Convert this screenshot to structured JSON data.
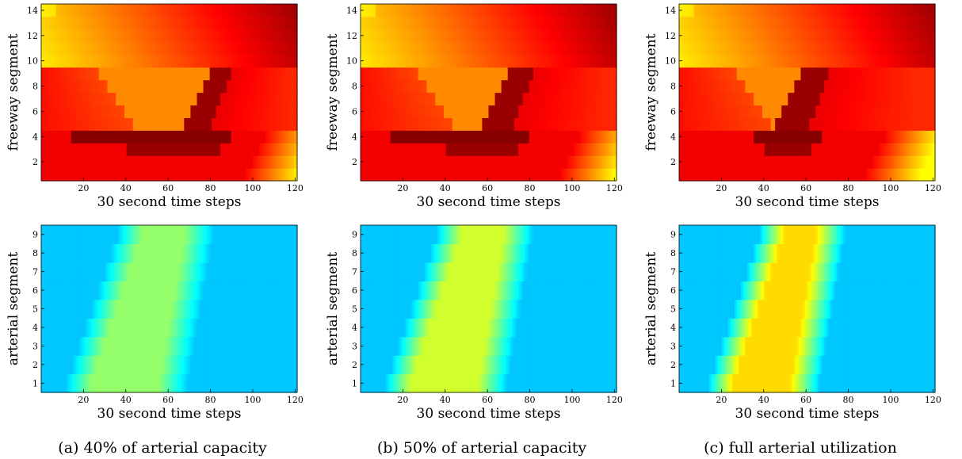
{
  "figure": {
    "captions": [
      "(a) 40% of arterial capacity",
      "(b) 50% of arterial capacity",
      "(c) full arterial utilization"
    ]
  },
  "chart_data": [
    {
      "type": "heatmap",
      "panel": "a",
      "row": "freeway",
      "xlabel": "30 second time steps",
      "ylabel": "freeway segment",
      "xlim": [
        0,
        121
      ],
      "ylim": [
        0.5,
        14.5
      ],
      "xticks": [
        20,
        40,
        60,
        80,
        100,
        120
      ],
      "yticks": [
        2,
        4,
        6,
        8,
        10,
        12,
        14
      ],
      "colormap": "hot",
      "grid": false,
      "nx": 120,
      "ny": 14,
      "description_of_values": "14 segment rows x 120 time-step columns; values 0 (dark red) to 1 (yellow)",
      "model": {
        "kind": "freeway",
        "q_start": 24,
        "q_end": 80,
        "recover_end": 118
      }
    },
    {
      "type": "heatmap",
      "panel": "b",
      "row": "freeway",
      "xlabel": "30 second time steps",
      "ylabel": "freeway segment",
      "xlim": [
        0,
        121
      ],
      "ylim": [
        0.5,
        14.5
      ],
      "xticks": [
        20,
        40,
        60,
        80,
        100,
        120
      ],
      "yticks": [
        2,
        4,
        6,
        8,
        10,
        12,
        14
      ],
      "colormap": "hot",
      "grid": false,
      "nx": 120,
      "ny": 14,
      "model": {
        "kind": "freeway",
        "q_start": 24,
        "q_end": 70,
        "recover_end": 116
      }
    },
    {
      "type": "heatmap",
      "panel": "c",
      "row": "freeway",
      "xlabel": "30 second time steps",
      "ylabel": "freeway segment",
      "xlim": [
        0,
        121
      ],
      "ylim": [
        0.5,
        14.5
      ],
      "xticks": [
        20,
        40,
        60,
        80,
        100,
        120
      ],
      "yticks": [
        2,
        4,
        6,
        8,
        10,
        12,
        14
      ],
      "colormap": "hot",
      "grid": false,
      "nx": 120,
      "ny": 14,
      "model": {
        "kind": "freeway",
        "q_start": 45,
        "q_end": 58,
        "recover_end": 110
      }
    },
    {
      "type": "heatmap",
      "panel": "a",
      "row": "arterial",
      "xlabel": "30 second time steps",
      "ylabel": "arterial segment",
      "xlim": [
        0,
        121
      ],
      "ylim": [
        0.5,
        9.5
      ],
      "xticks": [
        20,
        40,
        60,
        80,
        100,
        120
      ],
      "yticks": [
        1,
        2,
        3,
        4,
        5,
        6,
        7,
        8,
        9
      ],
      "colormap": "jet",
      "grid": false,
      "nx": 120,
      "ny": 9,
      "model": {
        "kind": "arterial",
        "start": 12,
        "width": 45,
        "shift": 3,
        "peak": 0.52
      }
    },
    {
      "type": "heatmap",
      "panel": "b",
      "row": "arterial",
      "xlabel": "30 second time steps",
      "ylabel": "arterial segment",
      "xlim": [
        0,
        121
      ],
      "ylim": [
        0.5,
        9.5
      ],
      "xticks": [
        20,
        40,
        60,
        80,
        100,
        120
      ],
      "yticks": [
        1,
        2,
        3,
        4,
        5,
        6,
        7,
        8,
        9
      ],
      "colormap": "jet",
      "grid": false,
      "nx": 120,
      "ny": 9,
      "model": {
        "kind": "arterial",
        "start": 12,
        "width": 45,
        "shift": 3,
        "peak": 0.58
      }
    },
    {
      "type": "heatmap",
      "panel": "c",
      "row": "arterial",
      "xlabel": "30 second time steps",
      "ylabel": "arterial segment",
      "xlim": [
        0,
        121
      ],
      "ylim": [
        0.5,
        9.5
      ],
      "xticks": [
        20,
        40,
        60,
        80,
        100,
        120
      ],
      "yticks": [
        1,
        2,
        3,
        4,
        5,
        6,
        7,
        8,
        9
      ],
      "colormap": "jet",
      "grid": false,
      "nx": 120,
      "ny": 9,
      "model": {
        "kind": "arterial",
        "start": 14,
        "width": 40,
        "shift": 3,
        "peak": 0.66
      }
    }
  ]
}
